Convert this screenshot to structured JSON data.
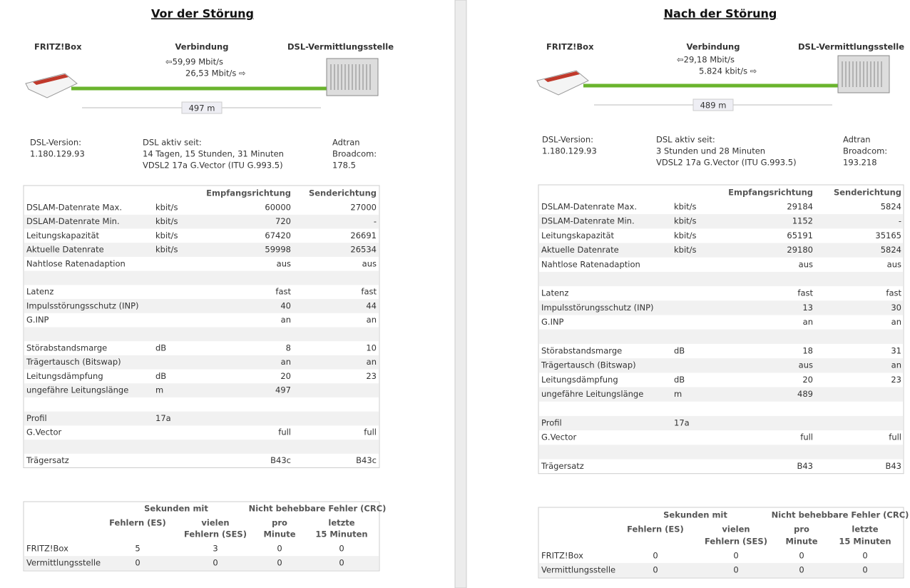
{
  "panels": [
    {
      "title": "Vor der Störung",
      "device": "FRITZ!Box",
      "connection": "Verbindung",
      "exchange": "DSL-Vermittlungsstelle",
      "downstream": "⇦59,99 Mbit/s",
      "upstream": "26,53 Mbit/s ⇨",
      "distance": "497 m",
      "info": [
        [
          "DSL-Version:",
          "1.180.129.93"
        ],
        [
          "DSL aktiv seit:",
          "14 Tagen, 15 Stunden, 31 Minuten",
          "VDSL2 17a G.Vector (ITU G.993.5)"
        ],
        [
          "Adtran",
          "Broadcom:",
          "178.5"
        ]
      ],
      "table": {
        "header": [
          "Empfangsrichtung",
          "Senderichtung"
        ],
        "rows": [
          [
            "DSLAM-Datenrate Max.",
            "kbit/s",
            60000,
            27000
          ],
          [
            "DSLAM-Datenrate Min.",
            "kbit/s",
            720,
            "-"
          ],
          [
            "Leitungskapazität",
            "kbit/s",
            67420,
            26691
          ],
          [
            "Aktuelle Datenrate",
            "kbit/s",
            59998,
            26534
          ],
          [
            "Nahtlose Ratenadaption",
            null,
            "aus",
            "aus"
          ],
          null,
          [
            "Latenz",
            null,
            "fast",
            "fast"
          ],
          [
            "Impulsstörungsschutz (INP)",
            null,
            40,
            44
          ],
          [
            "G.INP",
            null,
            "an",
            "an"
          ],
          null,
          [
            "Störabstandsmarge",
            "dB",
            8,
            10
          ],
          [
            "Trägertausch (Bitswap)",
            null,
            "an",
            "an"
          ],
          [
            "Leitungsdämpfung",
            "dB",
            20,
            23
          ],
          [
            "ungefähre Leitungslänge",
            "m",
            497,
            null
          ],
          null,
          [
            "Profil",
            "17a",
            null,
            null
          ],
          [
            "G.Vector",
            null,
            "full",
            "full"
          ],
          null,
          [
            "Trägersatz",
            null,
            "B43c",
            "B43c"
          ]
        ]
      },
      "errors": {
        "groups": [
          "Sekunden mit",
          "Nicht behebbare Fehler (CRC)"
        ],
        "columns": [
          [
            "Fehlern (ES)"
          ],
          [
            "vielen",
            "Fehlern (SES)"
          ],
          [
            "pro",
            "Minute"
          ],
          [
            "letzte",
            "15 Minuten"
          ]
        ],
        "rows": [
          [
            "FRITZ!Box",
            5,
            3,
            0,
            0
          ],
          [
            "Vermittlungsstelle",
            0,
            0,
            0,
            0
          ]
        ]
      }
    },
    {
      "title": "Nach der Störung",
      "device": "FRITZ!Box",
      "connection": "Verbindung",
      "exchange": "DSL-Vermittlungsstelle",
      "downstream": "⇦29,18 Mbit/s",
      "upstream": "5.824 kbit/s ⇨",
      "distance": "489 m",
      "info": [
        [
          "DSL-Version:",
          "1.180.129.93"
        ],
        [
          "DSL aktiv seit:",
          "3 Stunden und 28 Minuten",
          "VDSL2 17a G.Vector (ITU G.993.5)"
        ],
        [
          "Adtran",
          "Broadcom:",
          "193.218"
        ]
      ],
      "table": {
        "header": [
          "Empfangsrichtung",
          "Senderichtung"
        ],
        "rows": [
          [
            "DSLAM-Datenrate Max.",
            "kbit/s",
            29184,
            5824
          ],
          [
            "DSLAM-Datenrate Min.",
            "kbit/s",
            1152,
            "-"
          ],
          [
            "Leitungskapazität",
            "kbit/s",
            65191,
            35165
          ],
          [
            "Aktuelle Datenrate",
            "kbit/s",
            29180,
            5824
          ],
          [
            "Nahtlose Ratenadaption",
            null,
            "aus",
            "aus"
          ],
          null,
          [
            "Latenz",
            null,
            "fast",
            "fast"
          ],
          [
            "Impulsstörungsschutz (INP)",
            null,
            13,
            30
          ],
          [
            "G.INP",
            null,
            "an",
            "an"
          ],
          null,
          [
            "Störabstandsmarge",
            "dB",
            18,
            31
          ],
          [
            "Trägertausch (Bitswap)",
            null,
            "aus",
            "an"
          ],
          [
            "Leitungsdämpfung",
            "dB",
            20,
            23
          ],
          [
            "ungefähre Leitungslänge",
            "m",
            489,
            null
          ],
          null,
          [
            "Profil",
            "17a",
            null,
            null
          ],
          [
            "G.Vector",
            null,
            "full",
            "full"
          ],
          null,
          [
            "Trägersatz",
            null,
            "B43",
            "B43"
          ]
        ]
      },
      "errors": {
        "groups": [
          "Sekunden mit",
          "Nicht behebbare Fehler (CRC)"
        ],
        "columns": [
          [
            "Fehlern (ES)"
          ],
          [
            "vielen",
            "Fehlern (SES)"
          ],
          [
            "pro",
            "Minute"
          ],
          [
            "letzte",
            "15 Minuten"
          ]
        ],
        "rows": [
          [
            "FRITZ!Box",
            0,
            0,
            0,
            0
          ],
          [
            "Vermittlungsstelle",
            0,
            0,
            0,
            0
          ]
        ]
      }
    }
  ]
}
